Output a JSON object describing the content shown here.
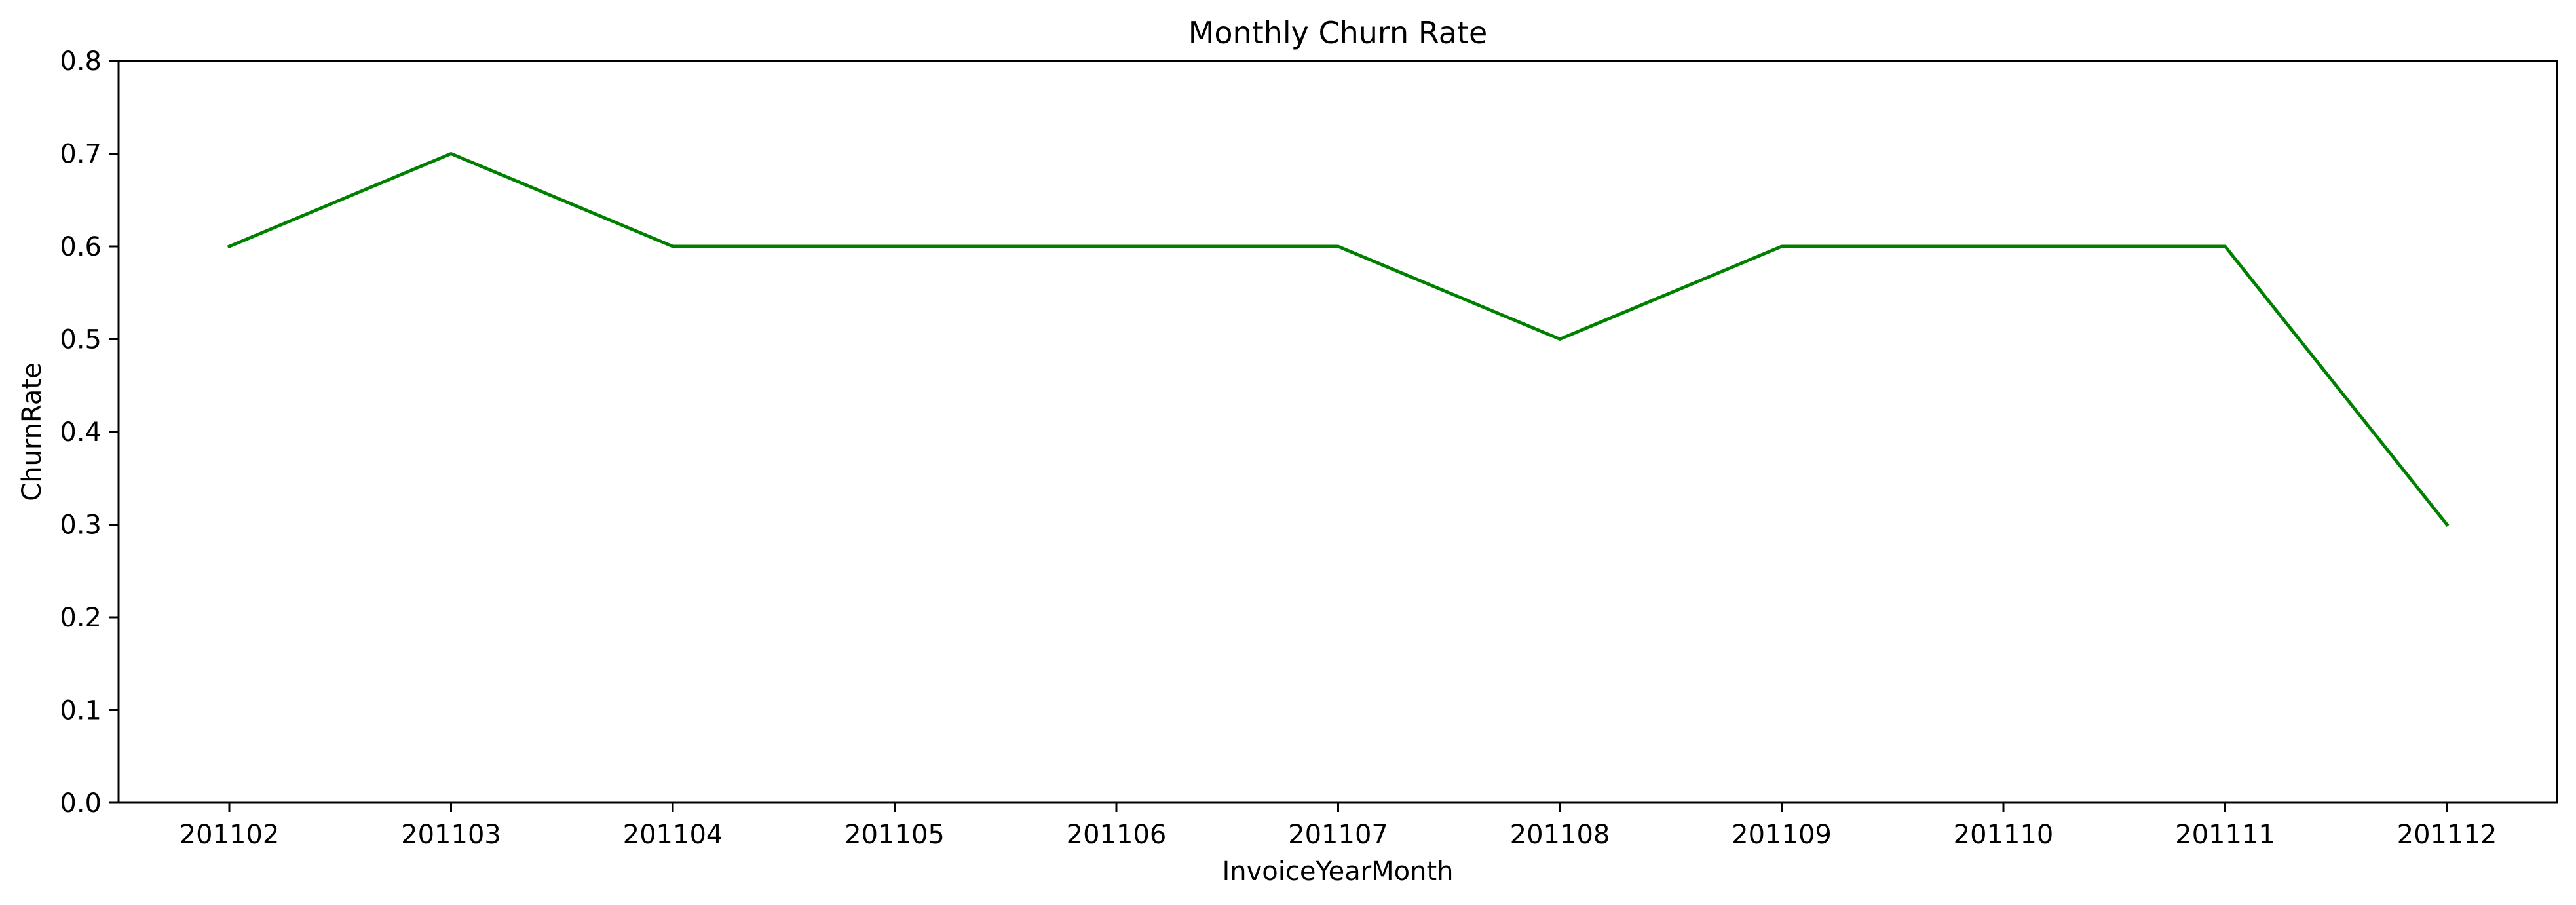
{
  "chart_data": {
    "type": "line",
    "title": "Monthly Churn Rate",
    "xlabel": "InvoiceYearMonth",
    "ylabel": "ChurnRate",
    "categories": [
      "201102",
      "201103",
      "201104",
      "201105",
      "201106",
      "201107",
      "201108",
      "201109",
      "201110",
      "201111",
      "201112"
    ],
    "series": [
      {
        "values": [
          0.6,
          0.7,
          0.6,
          0.6,
          0.6,
          0.6,
          0.5,
          0.6,
          0.6,
          0.6,
          0.3
        ],
        "color": "#008000"
      }
    ],
    "ylim": [
      0.0,
      0.8
    ],
    "yticks": [
      "0.0",
      "0.1",
      "0.2",
      "0.3",
      "0.4",
      "0.5",
      "0.6",
      "0.7",
      "0.8"
    ],
    "grid": false,
    "legend": "none"
  }
}
